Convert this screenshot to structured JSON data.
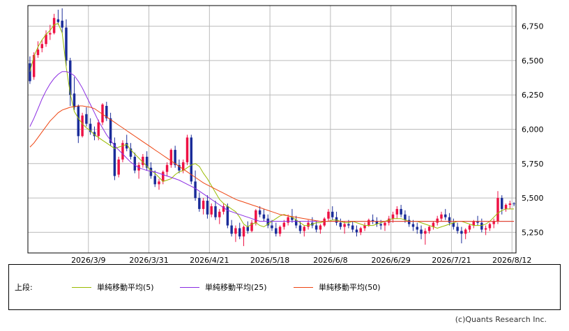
{
  "chart_data": {
    "type": "candlestick",
    "ylim": [
      5100,
      6900
    ],
    "y_ticks": [
      5250,
      5500,
      5750,
      6000,
      6250,
      6500,
      6750
    ],
    "y_tick_labels": [
      "5,250",
      "5,500",
      "5,750",
      "6,000",
      "6,250",
      "6,500",
      "6,750"
    ],
    "x_tick_labels": [
      "2026/3/9",
      "2026/3/31",
      "2026/4/21",
      "2026/5/18",
      "2026/6/8",
      "2026/6/29",
      "2026/7/21",
      "2026/8/12"
    ],
    "x_tick_index": [
      15,
      30,
      45,
      60,
      75,
      90,
      105,
      120
    ],
    "n_bars": 121,
    "grid": true,
    "up_color": "#ee1144",
    "down_color": "#1a2c99",
    "moving_averages": [
      {
        "name": "単純移動平均(5)",
        "color": "#99bb00",
        "start_index": 0,
        "values": [
          6420,
          6530,
          6600,
          6650,
          6690,
          6720,
          6760,
          6770,
          6700,
          6450,
          6260,
          6130,
          6080,
          6040,
          6010,
          5990,
          5960,
          5940,
          5920,
          5900,
          5880,
          5860,
          5870,
          5880,
          5890,
          5850,
          5820,
          5790,
          5760,
          5730,
          5700,
          5680,
          5650,
          5620,
          5630,
          5640,
          5670,
          5690,
          5700,
          5720,
          5740,
          5750,
          5730,
          5680,
          5640,
          5590,
          5540,
          5490,
          5460,
          5440,
          5420,
          5400,
          5360,
          5310,
          5290,
          5310,
          5320,
          5300,
          5290,
          5310,
          5330,
          5350,
          5370,
          5380,
          5370,
          5360,
          5340,
          5320,
          5300,
          5300,
          5310,
          5320,
          5320,
          5330,
          5330,
          5340,
          5340,
          5330,
          5320,
          5320,
          5330,
          5320,
          5310,
          5300,
          5300,
          5300,
          5310,
          5320,
          5330,
          5340,
          5350,
          5350,
          5350,
          5340,
          5330,
          5330,
          5330,
          5320,
          5310,
          5300,
          5290,
          5280,
          5290,
          5300,
          5310,
          5320,
          5330,
          5330,
          5320,
          5310,
          5300,
          5300,
          5300,
          5310,
          5330,
          5360,
          5390,
          5410,
          5420,
          5420,
          5420
        ]
      },
      {
        "name": "単純移動平均(25)",
        "color": "#8a2be2",
        "start_index": 0,
        "values": [
          6020,
          6080,
          6150,
          6220,
          6280,
          6330,
          6370,
          6400,
          6420,
          6420,
          6410,
          6390,
          6350,
          6300,
          6240,
          6180,
          6120,
          6060,
          6010,
          5960,
          5920,
          5880,
          5850,
          5820,
          5790,
          5760,
          5740,
          5720,
          5710,
          5700,
          5695,
          5690,
          5680,
          5670,
          5660,
          5650,
          5640,
          5630,
          5615,
          5600,
          5585,
          5570,
          5550,
          5530,
          5510,
          5490,
          5470,
          5450,
          5430,
          5410,
          5400,
          5390,
          5380,
          5370,
          5360,
          5350,
          5340,
          5330,
          5330,
          5330,
          5330,
          5330,
          5330,
          5330,
          5330,
          5330,
          5330,
          5330,
          5330,
          5330,
          5330,
          5330,
          5330,
          5330,
          5330,
          5330,
          5330,
          5330,
          5330,
          5330,
          5330,
          5330,
          5330,
          5330,
          5330,
          5330,
          5330,
          5330,
          5330,
          5330,
          5330,
          5330,
          5330,
          5330,
          5330,
          5330,
          5330,
          5330,
          5330,
          5330,
          5330,
          5330,
          5330,
          5330,
          5330,
          5330,
          5330,
          5330,
          5330,
          5330,
          5330,
          5330,
          5330,
          5330,
          5330,
          5330,
          5330,
          5330,
          5330,
          5330,
          5330
        ]
      },
      {
        "name": "単純移動平均(50)",
        "color": "#ee4411",
        "start_index": 0,
        "values": [
          5870,
          5900,
          5940,
          5980,
          6020,
          6060,
          6090,
          6120,
          6140,
          6150,
          6160,
          6165,
          6170,
          6170,
          6165,
          6160,
          6150,
          6130,
          6110,
          6090,
          6070,
          6050,
          6030,
          6010,
          5990,
          5970,
          5950,
          5930,
          5910,
          5890,
          5870,
          5850,
          5830,
          5810,
          5790,
          5770,
          5750,
          5730,
          5710,
          5690,
          5670,
          5650,
          5630,
          5610,
          5595,
          5580,
          5565,
          5550,
          5535,
          5520,
          5505,
          5490,
          5480,
          5470,
          5460,
          5450,
          5440,
          5430,
          5420,
          5410,
          5400,
          5390,
          5380,
          5375,
          5370,
          5365,
          5360,
          5355,
          5350,
          5345,
          5340,
          5335,
          5330,
          5330,
          5330,
          5330,
          5330,
          5330,
          5330,
          5330,
          5330,
          5330,
          5330,
          5330,
          5330,
          5330,
          5330,
          5330,
          5330,
          5330,
          5330,
          5330,
          5330,
          5330,
          5330,
          5330,
          5330,
          5330,
          5330,
          5330,
          5330,
          5330,
          5330,
          5330,
          5330,
          5330,
          5330,
          5330,
          5330,
          5330,
          5330,
          5330,
          5330,
          5330,
          5330,
          5330,
          5330,
          5330,
          5330,
          5330,
          5330
        ]
      }
    ],
    "candles": [
      [
        6480,
        6530,
        6330,
        6350
      ],
      [
        6380,
        6560,
        6360,
        6540
      ],
      [
        6540,
        6640,
        6520,
        6580
      ],
      [
        6590,
        6650,
        6560,
        6620
      ],
      [
        6620,
        6720,
        6600,
        6690
      ],
      [
        6690,
        6760,
        6650,
        6700
      ],
      [
        6700,
        6840,
        6690,
        6810
      ],
      [
        6800,
        6870,
        6760,
        6780
      ],
      [
        6790,
        6880,
        6700,
        6740
      ],
      [
        6740,
        6800,
        6460,
        6500
      ],
      [
        6500,
        6520,
        6170,
        6250
      ],
      [
        6260,
        6380,
        6140,
        6160
      ],
      [
        6170,
        6180,
        5900,
        5950
      ],
      [
        5950,
        6120,
        5940,
        6100
      ],
      [
        6110,
        6160,
        6020,
        6040
      ],
      [
        6040,
        6080,
        5960,
        5980
      ],
      [
        5980,
        6020,
        5920,
        5950
      ],
      [
        5950,
        6070,
        5920,
        6050
      ],
      [
        6050,
        6190,
        6030,
        6180
      ],
      [
        6170,
        6200,
        6060,
        6080
      ],
      [
        6080,
        6120,
        5880,
        5900
      ],
      [
        5900,
        5940,
        5630,
        5660
      ],
      [
        5670,
        5800,
        5650,
        5780
      ],
      [
        5780,
        5920,
        5760,
        5900
      ],
      [
        5900,
        5960,
        5840,
        5860
      ],
      [
        5860,
        5900,
        5780,
        5800
      ],
      [
        5800,
        5830,
        5680,
        5700
      ],
      [
        5700,
        5760,
        5640,
        5740
      ],
      [
        5740,
        5820,
        5720,
        5800
      ],
      [
        5800,
        5840,
        5700,
        5720
      ],
      [
        5720,
        5760,
        5640,
        5660
      ],
      [
        5660,
        5700,
        5580,
        5600
      ],
      [
        5600,
        5640,
        5560,
        5620
      ],
      [
        5620,
        5700,
        5600,
        5690
      ],
      [
        5690,
        5760,
        5660,
        5740
      ],
      [
        5740,
        5860,
        5720,
        5850
      ],
      [
        5850,
        5880,
        5720,
        5740
      ],
      [
        5740,
        5780,
        5680,
        5700
      ],
      [
        5700,
        5780,
        5680,
        5760
      ],
      [
        5760,
        5960,
        5740,
        5940
      ],
      [
        5940,
        5960,
        5600,
        5620
      ],
      [
        5620,
        5700,
        5480,
        5500
      ],
      [
        5500,
        5540,
        5400,
        5420
      ],
      [
        5420,
        5500,
        5380,
        5480
      ],
      [
        5480,
        5520,
        5350,
        5380
      ],
      [
        5380,
        5460,
        5360,
        5440
      ],
      [
        5440,
        5480,
        5340,
        5360
      ],
      [
        5360,
        5420,
        5310,
        5400
      ],
      [
        5400,
        5460,
        5380,
        5440
      ],
      [
        5440,
        5460,
        5280,
        5300
      ],
      [
        5300,
        5340,
        5220,
        5240
      ],
      [
        5240,
        5300,
        5180,
        5280
      ],
      [
        5280,
        5320,
        5200,
        5220
      ],
      [
        5220,
        5300,
        5150,
        5290
      ],
      [
        5290,
        5330,
        5240,
        5260
      ],
      [
        5260,
        5340,
        5250,
        5320
      ],
      [
        5320,
        5420,
        5300,
        5410
      ],
      [
        5410,
        5440,
        5360,
        5380
      ],
      [
        5380,
        5420,
        5330,
        5350
      ],
      [
        5350,
        5380,
        5280,
        5300
      ],
      [
        5300,
        5340,
        5260,
        5280
      ],
      [
        5280,
        5320,
        5220,
        5240
      ],
      [
        5240,
        5300,
        5220,
        5290
      ],
      [
        5290,
        5340,
        5270,
        5320
      ],
      [
        5320,
        5380,
        5300,
        5360
      ],
      [
        5360,
        5420,
        5320,
        5340
      ],
      [
        5340,
        5370,
        5280,
        5300
      ],
      [
        5300,
        5330,
        5240,
        5260
      ],
      [
        5260,
        5300,
        5220,
        5290
      ],
      [
        5290,
        5340,
        5270,
        5320
      ],
      [
        5320,
        5360,
        5280,
        5300
      ],
      [
        5300,
        5330,
        5250,
        5270
      ],
      [
        5270,
        5310,
        5240,
        5300
      ],
      [
        5300,
        5360,
        5290,
        5350
      ],
      [
        5350,
        5420,
        5330,
        5400
      ],
      [
        5400,
        5440,
        5340,
        5360
      ],
      [
        5360,
        5400,
        5300,
        5320
      ],
      [
        5320,
        5350,
        5270,
        5290
      ],
      [
        5290,
        5330,
        5240,
        5310
      ],
      [
        5310,
        5340,
        5280,
        5300
      ],
      [
        5300,
        5330,
        5250,
        5270
      ],
      [
        5270,
        5300,
        5220,
        5250
      ],
      [
        5250,
        5290,
        5230,
        5280
      ],
      [
        5280,
        5320,
        5260,
        5300
      ],
      [
        5300,
        5350,
        5290,
        5340
      ],
      [
        5340,
        5380,
        5310,
        5330
      ],
      [
        5330,
        5360,
        5290,
        5310
      ],
      [
        5310,
        5340,
        5270,
        5300
      ],
      [
        5300,
        5330,
        5260,
        5320
      ],
      [
        5320,
        5370,
        5300,
        5350
      ],
      [
        5350,
        5400,
        5320,
        5380
      ],
      [
        5380,
        5440,
        5350,
        5420
      ],
      [
        5420,
        5450,
        5360,
        5380
      ],
      [
        5380,
        5410,
        5320,
        5340
      ],
      [
        5340,
        5370,
        5290,
        5310
      ],
      [
        5310,
        5340,
        5260,
        5290
      ],
      [
        5290,
        5320,
        5240,
        5270
      ],
      [
        5270,
        5300,
        5200,
        5240
      ],
      [
        5240,
        5280,
        5160,
        5260
      ],
      [
        5260,
        5300,
        5240,
        5290
      ],
      [
        5290,
        5330,
        5270,
        5320
      ],
      [
        5320,
        5370,
        5300,
        5350
      ],
      [
        5350,
        5400,
        5330,
        5380
      ],
      [
        5380,
        5420,
        5340,
        5360
      ],
      [
        5360,
        5390,
        5300,
        5320
      ],
      [
        5320,
        5350,
        5270,
        5290
      ],
      [
        5290,
        5320,
        5240,
        5260
      ],
      [
        5260,
        5290,
        5170,
        5240
      ],
      [
        5240,
        5280,
        5200,
        5270
      ],
      [
        5270,
        5310,
        5250,
        5300
      ],
      [
        5300,
        5340,
        5280,
        5330
      ],
      [
        5330,
        5370,
        5300,
        5320
      ],
      [
        5320,
        5350,
        5250,
        5270
      ],
      [
        5270,
        5300,
        5230,
        5280
      ],
      [
        5280,
        5320,
        5260,
        5310
      ],
      [
        5310,
        5350,
        5280,
        5330
      ],
      [
        5330,
        5550,
        5310,
        5500
      ],
      [
        5500,
        5520,
        5380,
        5420
      ],
      [
        5420,
        5460,
        5400,
        5450
      ],
      [
        5450,
        5480,
        5420,
        5460
      ],
      [
        5460,
        5470,
        5440,
        5455
      ]
    ]
  },
  "legend": {
    "prefix": "上段:",
    "items": [
      {
        "label": "単純移動平均(5)",
        "color": "#99bb00"
      },
      {
        "label": "単純移動平均(25)",
        "color": "#8a2be2"
      },
      {
        "label": "単純移動平均(50)",
        "color": "#ee4411"
      }
    ]
  },
  "copyright": "(c)Quants Research Inc."
}
